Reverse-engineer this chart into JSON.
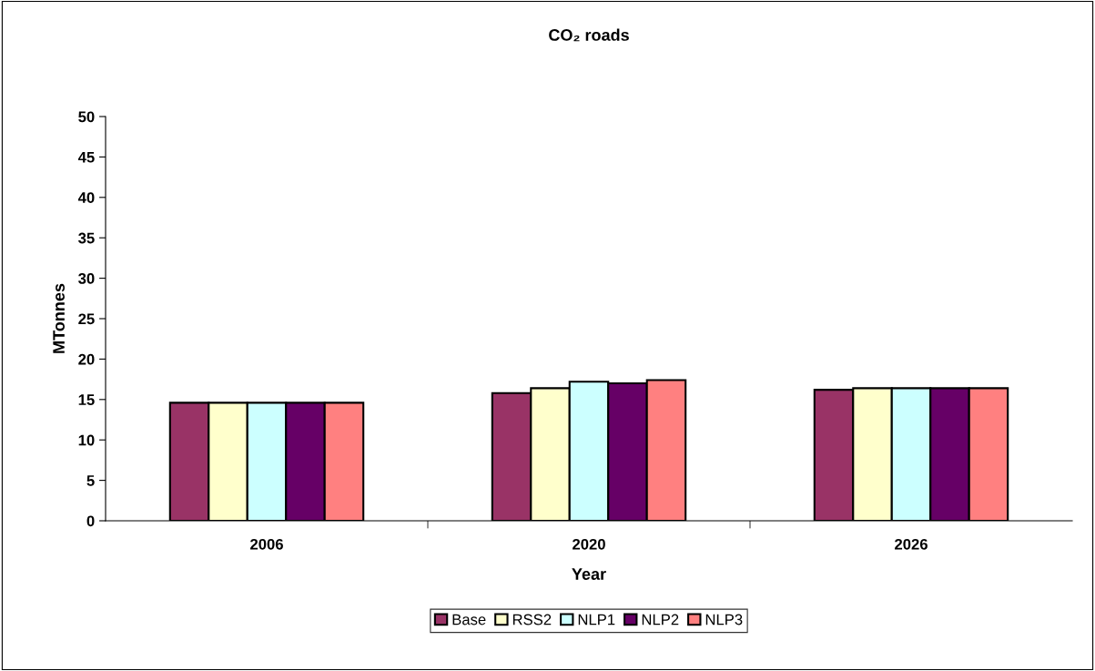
{
  "chart_data": {
    "type": "bar",
    "title": "CO₂ roads",
    "xlabel": "Year",
    "ylabel": "MTonnes",
    "categories": [
      "2006",
      "2020",
      "2026"
    ],
    "series": [
      {
        "name": "Base",
        "color": "#993366",
        "values": [
          14.6,
          15.8,
          16.2
        ]
      },
      {
        "name": "RSS2",
        "color": "#ffffcc",
        "values": [
          14.6,
          16.4,
          16.4
        ]
      },
      {
        "name": "NLP1",
        "color": "#ccffff",
        "values": [
          14.6,
          17.2,
          16.4
        ]
      },
      {
        "name": "NLP2",
        "color": "#660066",
        "values": [
          14.6,
          17.0,
          16.4
        ]
      },
      {
        "name": "NLP3",
        "color": "#ff8080",
        "values": [
          14.6,
          17.4,
          16.4
        ]
      }
    ],
    "ylim": [
      0,
      50
    ],
    "yticks": [
      0,
      5,
      10,
      15,
      20,
      25,
      30,
      35,
      40,
      45,
      50
    ],
    "grid": false,
    "legend": "bottom"
  }
}
